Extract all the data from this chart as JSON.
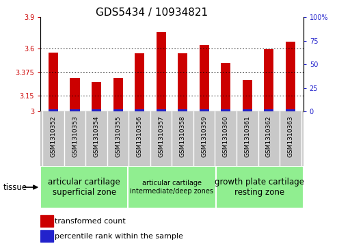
{
  "title": "GDS5434 / 10934821",
  "samples": [
    "GSM1310352",
    "GSM1310353",
    "GSM1310354",
    "GSM1310355",
    "GSM1310356",
    "GSM1310357",
    "GSM1310358",
    "GSM1310359",
    "GSM1310360",
    "GSM1310361",
    "GSM1310362",
    "GSM1310363"
  ],
  "transformed_count": [
    3.565,
    3.32,
    3.28,
    3.325,
    3.555,
    3.76,
    3.555,
    3.635,
    3.465,
    3.305,
    3.595,
    3.67
  ],
  "ylim_left": [
    3.0,
    3.9
  ],
  "yticks_left": [
    3.0,
    3.15,
    3.375,
    3.6,
    3.9
  ],
  "ytick_labels_left": [
    "3",
    "3.15",
    "3.375",
    "3.6",
    "3.9"
  ],
  "ylim_right": [
    0,
    100
  ],
  "yticks_right": [
    0,
    25,
    50,
    75,
    100
  ],
  "ytick_labels_right": [
    "0",
    "25",
    "50",
    "75",
    "100%"
  ],
  "grid_values": [
    3.15,
    3.375,
    3.6
  ],
  "bar_color_red": "#cc0000",
  "bar_color_blue": "#2222cc",
  "percentile_values": [
    2,
    2,
    2,
    2,
    3,
    2,
    2,
    2,
    2,
    2,
    2,
    2
  ],
  "groups": [
    {
      "label": "articular cartilage\nsuperficial zone",
      "start": 0,
      "end": 4,
      "fontsize": 8.5
    },
    {
      "label": "articular cartilage\nintermediate/deep zones",
      "start": 4,
      "end": 8,
      "fontsize": 7.0
    },
    {
      "label": "growth plate cartilage\nresting zone",
      "start": 8,
      "end": 12,
      "fontsize": 8.5
    }
  ],
  "group_color": "#90ee90",
  "tissue_label": "tissue",
  "legend_red_label": "transformed count",
  "legend_blue_label": "percentile rank within the sample",
  "title_fontsize": 11,
  "tick_label_fontsize": 7,
  "sample_label_fontsize": 6.5,
  "left_tick_color": "#cc0000",
  "right_tick_color": "#2222cc",
  "bar_width": 0.45,
  "base_value": 3.0,
  "percentile_bar_height": 0.022,
  "xtick_bg_color": "#c8c8c8",
  "plot_bg_color": "#ffffff",
  "border_color": "#000000"
}
